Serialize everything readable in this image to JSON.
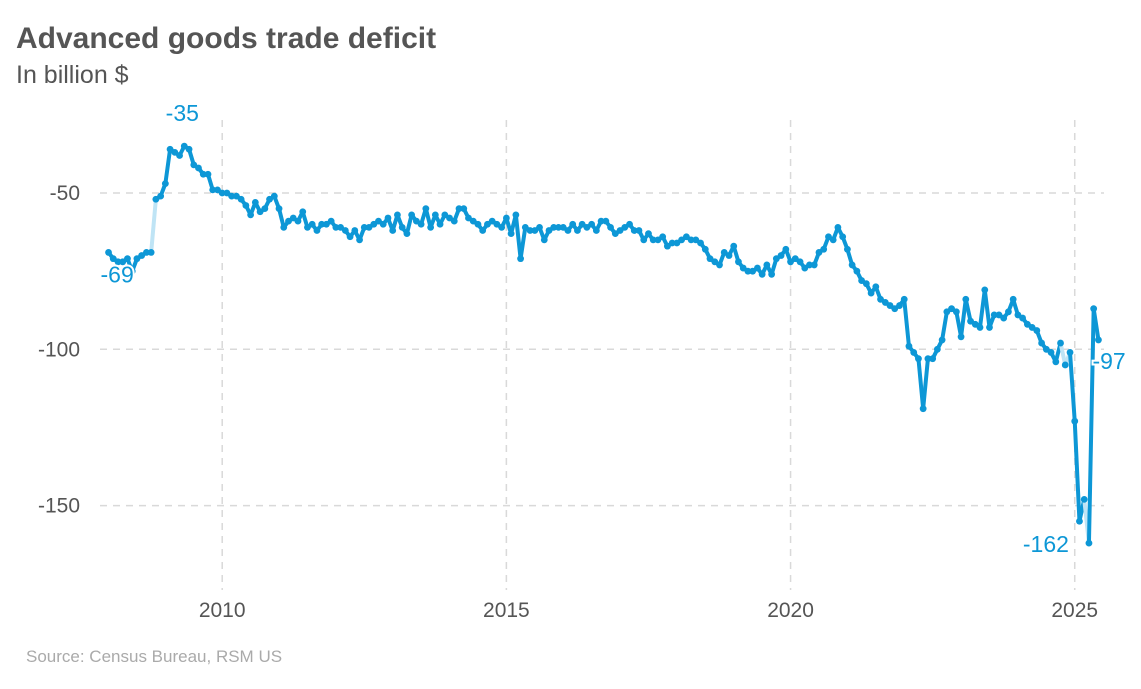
{
  "title": "Advanced goods trade deficit",
  "subtitle": "In billion $",
  "source": "Source: Census Bureau, RSM US",
  "colors": {
    "line": "#0d97d6",
    "line_light": "#bfe4f5",
    "grid": "#d9d9d9",
    "text": "#555555",
    "source": "#aaaaaa"
  },
  "chart_data": {
    "type": "line",
    "title": "Advanced goods trade deficit",
    "subtitle": "In billion $",
    "xlabel": "",
    "ylabel": "",
    "xlim": [
      2007.85,
      2025.55
    ],
    "ylim": [
      -177,
      -26
    ],
    "x_ticks": [
      {
        "value": 2010,
        "label": "2010"
      },
      {
        "value": 2015,
        "label": "2015"
      },
      {
        "value": 2020,
        "label": "2020"
      },
      {
        "value": 2025,
        "label": "2025"
      }
    ],
    "y_ticks": [
      {
        "value": -50,
        "label": "-50"
      },
      {
        "value": -100,
        "label": "-100"
      },
      {
        "value": -150,
        "label": "-150"
      }
    ],
    "grid": true,
    "legend": "none",
    "series": [
      {
        "points": [
          [
            2008.0,
            -69
          ],
          [
            2008.083,
            -71
          ],
          [
            2008.167,
            -72
          ],
          [
            2008.25,
            -72
          ],
          [
            2008.333,
            -71
          ],
          [
            2008.417,
            -75
          ],
          [
            2008.5,
            -71
          ],
          [
            2008.583,
            -70
          ],
          [
            2008.667,
            -69
          ],
          [
            2008.75,
            -69
          ],
          [
            2008.833,
            -52
          ],
          [
            2008.917,
            -51
          ],
          [
            2009.0,
            -47
          ],
          [
            2009.083,
            -36
          ],
          [
            2009.167,
            -37
          ],
          [
            2009.25,
            -38
          ],
          [
            2009.333,
            -35
          ],
          [
            2009.417,
            -36
          ],
          [
            2009.5,
            -41
          ],
          [
            2009.583,
            -42
          ],
          [
            2009.667,
            -44
          ],
          [
            2009.75,
            -44
          ],
          [
            2009.833,
            -49
          ],
          [
            2009.917,
            -49
          ],
          [
            2010.0,
            -50
          ],
          [
            2010.083,
            -50
          ],
          [
            2010.167,
            -51
          ],
          [
            2010.25,
            -51
          ],
          [
            2010.333,
            -52
          ],
          [
            2010.417,
            -54
          ],
          [
            2010.5,
            -57
          ],
          [
            2010.583,
            -53
          ],
          [
            2010.667,
            -56
          ],
          [
            2010.75,
            -55
          ],
          [
            2010.833,
            -52
          ],
          [
            2010.917,
            -51
          ],
          [
            2011.0,
            -55
          ],
          [
            2011.083,
            -61
          ],
          [
            2011.167,
            -59
          ],
          [
            2011.25,
            -58
          ],
          [
            2011.333,
            -59
          ],
          [
            2011.417,
            -56
          ],
          [
            2011.5,
            -61
          ],
          [
            2011.583,
            -60
          ],
          [
            2011.667,
            -62
          ],
          [
            2011.75,
            -60
          ],
          [
            2011.833,
            -60
          ],
          [
            2011.917,
            -59
          ],
          [
            2012.0,
            -61
          ],
          [
            2012.083,
            -61
          ],
          [
            2012.167,
            -62
          ],
          [
            2012.25,
            -64
          ],
          [
            2012.333,
            -62
          ],
          [
            2012.417,
            -65
          ],
          [
            2012.5,
            -61
          ],
          [
            2012.583,
            -61
          ],
          [
            2012.667,
            -60
          ],
          [
            2012.75,
            -59
          ],
          [
            2012.833,
            -60
          ],
          [
            2012.917,
            -58
          ],
          [
            2013.0,
            -62
          ],
          [
            2013.083,
            -57
          ],
          [
            2013.167,
            -61
          ],
          [
            2013.25,
            -63
          ],
          [
            2013.333,
            -57
          ],
          [
            2013.417,
            -59
          ],
          [
            2013.5,
            -60
          ],
          [
            2013.583,
            -55
          ],
          [
            2013.667,
            -61
          ],
          [
            2013.75,
            -57
          ],
          [
            2013.833,
            -60
          ],
          [
            2013.917,
            -57
          ],
          [
            2014.0,
            -58
          ],
          [
            2014.083,
            -59
          ],
          [
            2014.167,
            -55
          ],
          [
            2014.25,
            -55
          ],
          [
            2014.333,
            -58
          ],
          [
            2014.417,
            -59
          ],
          [
            2014.5,
            -60
          ],
          [
            2014.583,
            -62
          ],
          [
            2014.667,
            -60
          ],
          [
            2014.75,
            -59
          ],
          [
            2014.833,
            -60
          ],
          [
            2014.917,
            -61
          ],
          [
            2015.0,
            -58
          ],
          [
            2015.083,
            -63
          ],
          [
            2015.167,
            -57
          ],
          [
            2015.25,
            -71
          ],
          [
            2015.333,
            -61
          ],
          [
            2015.417,
            -62
          ],
          [
            2015.5,
            -62
          ],
          [
            2015.583,
            -61
          ],
          [
            2015.667,
            -65
          ],
          [
            2015.75,
            -62
          ],
          [
            2015.833,
            -61
          ],
          [
            2015.917,
            -61
          ],
          [
            2016.0,
            -61
          ],
          [
            2016.083,
            -62
          ],
          [
            2016.167,
            -60
          ],
          [
            2016.25,
            -62
          ],
          [
            2016.333,
            -60
          ],
          [
            2016.417,
            -61
          ],
          [
            2016.5,
            -60
          ],
          [
            2016.583,
            -62
          ],
          [
            2016.667,
            -59
          ],
          [
            2016.75,
            -59
          ],
          [
            2016.833,
            -61
          ],
          [
            2016.917,
            -63
          ],
          [
            2017.0,
            -62
          ],
          [
            2017.083,
            -61
          ],
          [
            2017.167,
            -60
          ],
          [
            2017.25,
            -62
          ],
          [
            2017.333,
            -62
          ],
          [
            2017.417,
            -65
          ],
          [
            2017.5,
            -63
          ],
          [
            2017.583,
            -65
          ],
          [
            2017.667,
            -65
          ],
          [
            2017.75,
            -64
          ],
          [
            2017.833,
            -67
          ],
          [
            2017.917,
            -66
          ],
          [
            2018.0,
            -66
          ],
          [
            2018.083,
            -65
          ],
          [
            2018.167,
            -64
          ],
          [
            2018.25,
            -65
          ],
          [
            2018.333,
            -65
          ],
          [
            2018.417,
            -66
          ],
          [
            2018.5,
            -68
          ],
          [
            2018.583,
            -71
          ],
          [
            2018.667,
            -72
          ],
          [
            2018.75,
            -73
          ],
          [
            2018.833,
            -69
          ],
          [
            2018.917,
            -70
          ],
          [
            2019.0,
            -67
          ],
          [
            2019.083,
            -72
          ],
          [
            2019.167,
            -74
          ],
          [
            2019.25,
            -75
          ],
          [
            2019.333,
            -75
          ],
          [
            2019.417,
            -74
          ],
          [
            2019.5,
            -76
          ],
          [
            2019.583,
            -73
          ],
          [
            2019.667,
            -76
          ],
          [
            2019.75,
            -71
          ],
          [
            2019.833,
            -70
          ],
          [
            2019.917,
            -68
          ],
          [
            2020.0,
            -72
          ],
          [
            2020.083,
            -71
          ],
          [
            2020.167,
            -72
          ],
          [
            2020.25,
            -74
          ],
          [
            2020.333,
            -73
          ],
          [
            2020.417,
            -73
          ],
          [
            2020.5,
            -69
          ],
          [
            2020.583,
            -68
          ],
          [
            2020.667,
            -64
          ],
          [
            2020.75,
            -65
          ],
          [
            2020.833,
            -61
          ],
          [
            2020.917,
            -64
          ],
          [
            2021.0,
            -68
          ],
          [
            2021.083,
            -73
          ],
          [
            2021.167,
            -75
          ],
          [
            2021.25,
            -78
          ],
          [
            2021.333,
            -79
          ],
          [
            2021.417,
            -82
          ],
          [
            2021.5,
            -80
          ],
          [
            2021.583,
            -84
          ],
          [
            2021.667,
            -85
          ],
          [
            2021.75,
            -86
          ],
          [
            2021.833,
            -87
          ],
          [
            2021.917,
            -86
          ],
          [
            2022.0,
            -84
          ],
          [
            2022.083,
            -99
          ],
          [
            2022.167,
            -101
          ],
          [
            2022.25,
            -103
          ],
          [
            2022.333,
            -119
          ],
          [
            2022.417,
            -103
          ],
          [
            2022.5,
            -103
          ],
          [
            2022.583,
            -100
          ],
          [
            2022.667,
            -97
          ],
          [
            2022.75,
            -88
          ],
          [
            2022.833,
            -87
          ],
          [
            2022.917,
            -88
          ],
          [
            2023.0,
            -96
          ],
          [
            2023.083,
            -84
          ],
          [
            2023.167,
            -91
          ],
          [
            2023.25,
            -92
          ],
          [
            2023.333,
            -93
          ],
          [
            2023.417,
            -81
          ],
          [
            2023.5,
            -93
          ],
          [
            2023.583,
            -89
          ],
          [
            2023.667,
            -89
          ],
          [
            2023.75,
            -90
          ],
          [
            2023.833,
            -88
          ],
          [
            2023.917,
            -84
          ],
          [
            2024.0,
            -89
          ],
          [
            2024.083,
            -90
          ],
          [
            2024.167,
            -92
          ],
          [
            2024.25,
            -93
          ],
          [
            2024.333,
            -94
          ],
          [
            2024.417,
            -98
          ],
          [
            2024.5,
            -100
          ],
          [
            2024.583,
            -101
          ],
          [
            2024.667,
            -104
          ],
          [
            2024.75,
            -98
          ],
          [
            2024.833,
            -105
          ],
          [
            2024.917,
            -101
          ],
          [
            2025.0,
            -123
          ],
          [
            2025.083,
            -155
          ],
          [
            2025.167,
            -148
          ],
          [
            2025.25,
            -162
          ],
          [
            2025.333,
            -87
          ],
          [
            2025.417,
            -97
          ]
        ],
        "highlight_ranges": [
          [
            2008.667,
            2008.833
          ],
          [
            2024.75,
            2024.917
          ],
          [
            2025.167,
            2025.25
          ]
        ]
      }
    ],
    "annotations": [
      {
        "x": 2008.0,
        "y": -69,
        "label": "-69"
      },
      {
        "x": 2009.333,
        "y": -35,
        "label": "-35"
      },
      {
        "x": 2025.25,
        "y": -162,
        "label": "-162"
      },
      {
        "x": 2025.417,
        "y": -97,
        "label": "-97"
      }
    ]
  }
}
